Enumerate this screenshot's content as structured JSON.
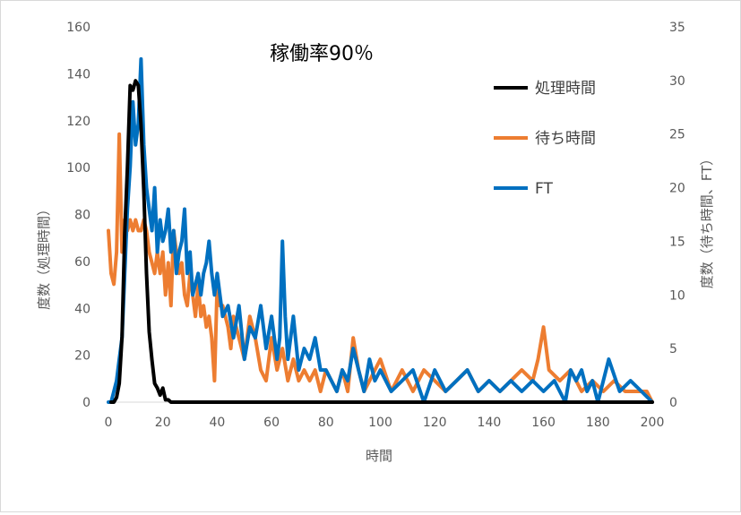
{
  "chart_data": {
    "type": "line",
    "title": "稼働率90％",
    "xlabel": "時間",
    "ylabel_left": "度数（処理時間）",
    "ylabel_right": "度数（待ち時間、FT）",
    "xlim": [
      0,
      200
    ],
    "ylim_left": [
      0,
      160
    ],
    "ylim_right": [
      0,
      35
    ],
    "x_ticks": [
      "0",
      "20",
      "40",
      "60",
      "80",
      "100",
      "120",
      "140",
      "160",
      "180",
      "200"
    ],
    "y_ticks_left": [
      "0",
      "20",
      "40",
      "60",
      "80",
      "100",
      "120",
      "140",
      "160"
    ],
    "y_ticks_right": [
      "0",
      "5",
      "10",
      "15",
      "20",
      "25",
      "30",
      "35"
    ],
    "legend_position": "top-right",
    "grid": false,
    "series": [
      {
        "name": "処理時間",
        "axis": "left",
        "color": "#000000",
        "x": [
          1,
          2,
          3,
          4,
          5,
          6,
          7,
          8,
          9,
          10,
          11,
          12,
          13,
          14,
          15,
          16,
          17,
          18,
          19,
          20,
          21,
          22,
          23,
          24,
          25,
          30,
          40,
          60,
          80,
          100,
          120,
          140,
          160,
          180,
          200
        ],
        "y": [
          0,
          0,
          2,
          8,
          28,
          72,
          100,
          135,
          133,
          137,
          135,
          118,
          90,
          55,
          30,
          18,
          8,
          6,
          3,
          6,
          1,
          1,
          0,
          0,
          0,
          0,
          0,
          0,
          0,
          0,
          0,
          0,
          0,
          0,
          0
        ]
      },
      {
        "name": "待ち時間",
        "axis": "right",
        "color": "#ed7d31",
        "x": [
          0,
          1,
          2,
          3,
          4,
          5,
          6,
          7,
          8,
          9,
          10,
          11,
          12,
          13,
          14,
          15,
          16,
          17,
          18,
          19,
          20,
          21,
          22,
          23,
          24,
          25,
          26,
          27,
          28,
          29,
          30,
          31,
          32,
          33,
          34,
          35,
          36,
          37,
          38,
          39,
          40,
          41,
          42,
          43,
          44,
          45,
          46,
          47,
          48,
          49,
          50,
          52,
          54,
          56,
          58,
          60,
          62,
          64,
          66,
          68,
          70,
          72,
          74,
          76,
          78,
          80,
          82,
          84,
          86,
          88,
          90,
          92,
          94,
          96,
          98,
          100,
          104,
          108,
          112,
          116,
          120,
          124,
          128,
          132,
          136,
          140,
          144,
          148,
          152,
          156,
          158,
          160,
          162,
          166,
          170,
          174,
          178,
          182,
          186,
          190,
          194,
          198,
          200
        ],
        "y": [
          16,
          12,
          11,
          14,
          25,
          14,
          17,
          16,
          17,
          16,
          17,
          16,
          16,
          17,
          16,
          14,
          13,
          12,
          14,
          12,
          14,
          10,
          13,
          9,
          16,
          14,
          12,
          13,
          10,
          9,
          12,
          10,
          8,
          11,
          8,
          9,
          7,
          8,
          6,
          2,
          11,
          9,
          9,
          8,
          7,
          5,
          8,
          7,
          6,
          5,
          4,
          8,
          6,
          3,
          2,
          6,
          3,
          5,
          2,
          4,
          2,
          3,
          2,
          3,
          1,
          3,
          2,
          1,
          3,
          1,
          6,
          3,
          1,
          2,
          3,
          4,
          1,
          3,
          1,
          3,
          2,
          1,
          2,
          3,
          1,
          2,
          1,
          2,
          3,
          2,
          4,
          7,
          3,
          2,
          3,
          1,
          2,
          1,
          2,
          1,
          1,
          1,
          0
        ]
      },
      {
        "name": "FT",
        "axis": "right",
        "color": "#0070c0",
        "x": [
          0,
          1,
          2,
          3,
          4,
          5,
          6,
          7,
          8,
          9,
          10,
          11,
          12,
          13,
          14,
          15,
          16,
          17,
          18,
          19,
          20,
          21,
          22,
          23,
          24,
          25,
          26,
          27,
          28,
          29,
          30,
          31,
          32,
          33,
          34,
          35,
          36,
          37,
          38,
          39,
          40,
          42,
          44,
          46,
          48,
          50,
          52,
          54,
          56,
          58,
          60,
          62,
          63,
          64,
          65,
          66,
          68,
          70,
          72,
          74,
          76,
          78,
          80,
          82,
          84,
          86,
          88,
          90,
          92,
          94,
          96,
          98,
          100,
          104,
          108,
          112,
          116,
          120,
          124,
          128,
          132,
          136,
          140,
          144,
          148,
          152,
          156,
          160,
          164,
          168,
          170,
          172,
          174,
          176,
          178,
          180,
          184,
          188,
          192,
          196,
          200
        ],
        "y": [
          0,
          0,
          1,
          2,
          4,
          6,
          12,
          18,
          22,
          28,
          24,
          26,
          32,
          24,
          20,
          18,
          16,
          20,
          14,
          17,
          15,
          16,
          18,
          14,
          16,
          12,
          14,
          15,
          18,
          12,
          14,
          10,
          11,
          12,
          10,
          12,
          13,
          15,
          12,
          10,
          12,
          8,
          9,
          6,
          9,
          4,
          7,
          6,
          9,
          5,
          8,
          4,
          6,
          15,
          8,
          4,
          8,
          3,
          5,
          4,
          6,
          3,
          3,
          2,
          1,
          3,
          2,
          5,
          3,
          1,
          4,
          2,
          3,
          1,
          2,
          3,
          0,
          3,
          1,
          2,
          3,
          1,
          2,
          1,
          2,
          1,
          2,
          1,
          2,
          0,
          3,
          2,
          3,
          1,
          2,
          0,
          4,
          1,
          2,
          1,
          0
        ]
      }
    ]
  }
}
